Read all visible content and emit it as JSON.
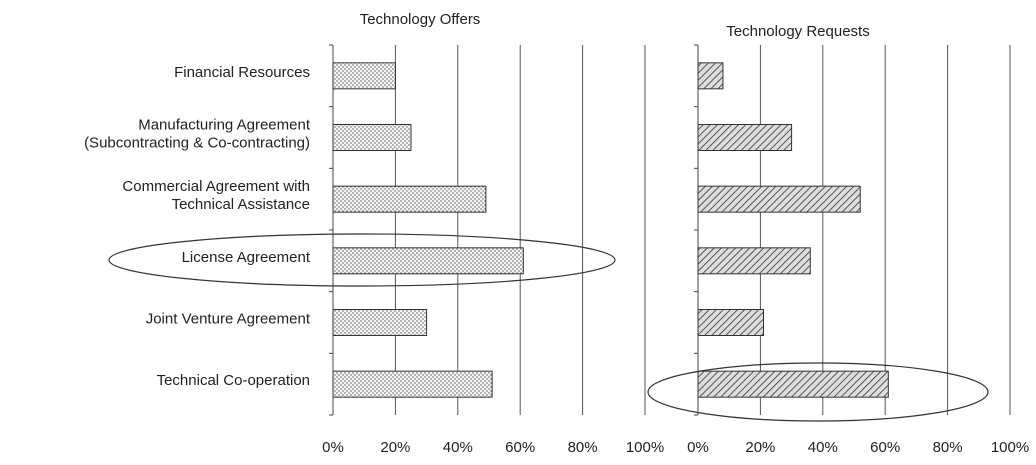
{
  "chart_data": [
    {
      "type": "bar",
      "orientation": "horizontal",
      "title": "Technology Offers",
      "categories": [
        "Financial Resources",
        "Manufacturing Agreement\n(Subcontracting & Co-contracting)",
        "Commercial Agreement with\nTechnical Assistance",
        "License Agreement",
        "Joint Venture Agreement",
        "Technical Co-operation"
      ],
      "values": [
        20,
        25,
        49,
        61,
        30,
        51
      ],
      "color": "#333333",
      "pattern": "dots",
      "xlim": [
        0,
        100
      ],
      "xticks": [
        {
          "value": 0,
          "label": "0%"
        },
        {
          "value": 20,
          "label": "20%"
        },
        {
          "value": 40,
          "label": "40%"
        },
        {
          "value": 60,
          "label": "60%"
        },
        {
          "value": 80,
          "label": "80%"
        },
        {
          "value": 100,
          "label": "100%"
        }
      ],
      "grid": true
    },
    {
      "type": "bar",
      "orientation": "horizontal",
      "title": "Technology Requests",
      "values": [
        8,
        30,
        52,
        36,
        21,
        61
      ],
      "color": "#333333",
      "pattern": "hatch",
      "xlim": [
        0,
        100
      ],
      "xticks": [
        {
          "value": 0,
          "label": "0%"
        },
        {
          "value": 20,
          "label": "20%"
        },
        {
          "value": 40,
          "label": "40%"
        },
        {
          "value": 60,
          "label": "60%"
        },
        {
          "value": 80,
          "label": "80%"
        },
        {
          "value": 100,
          "label": "100%"
        }
      ],
      "grid": true
    }
  ]
}
